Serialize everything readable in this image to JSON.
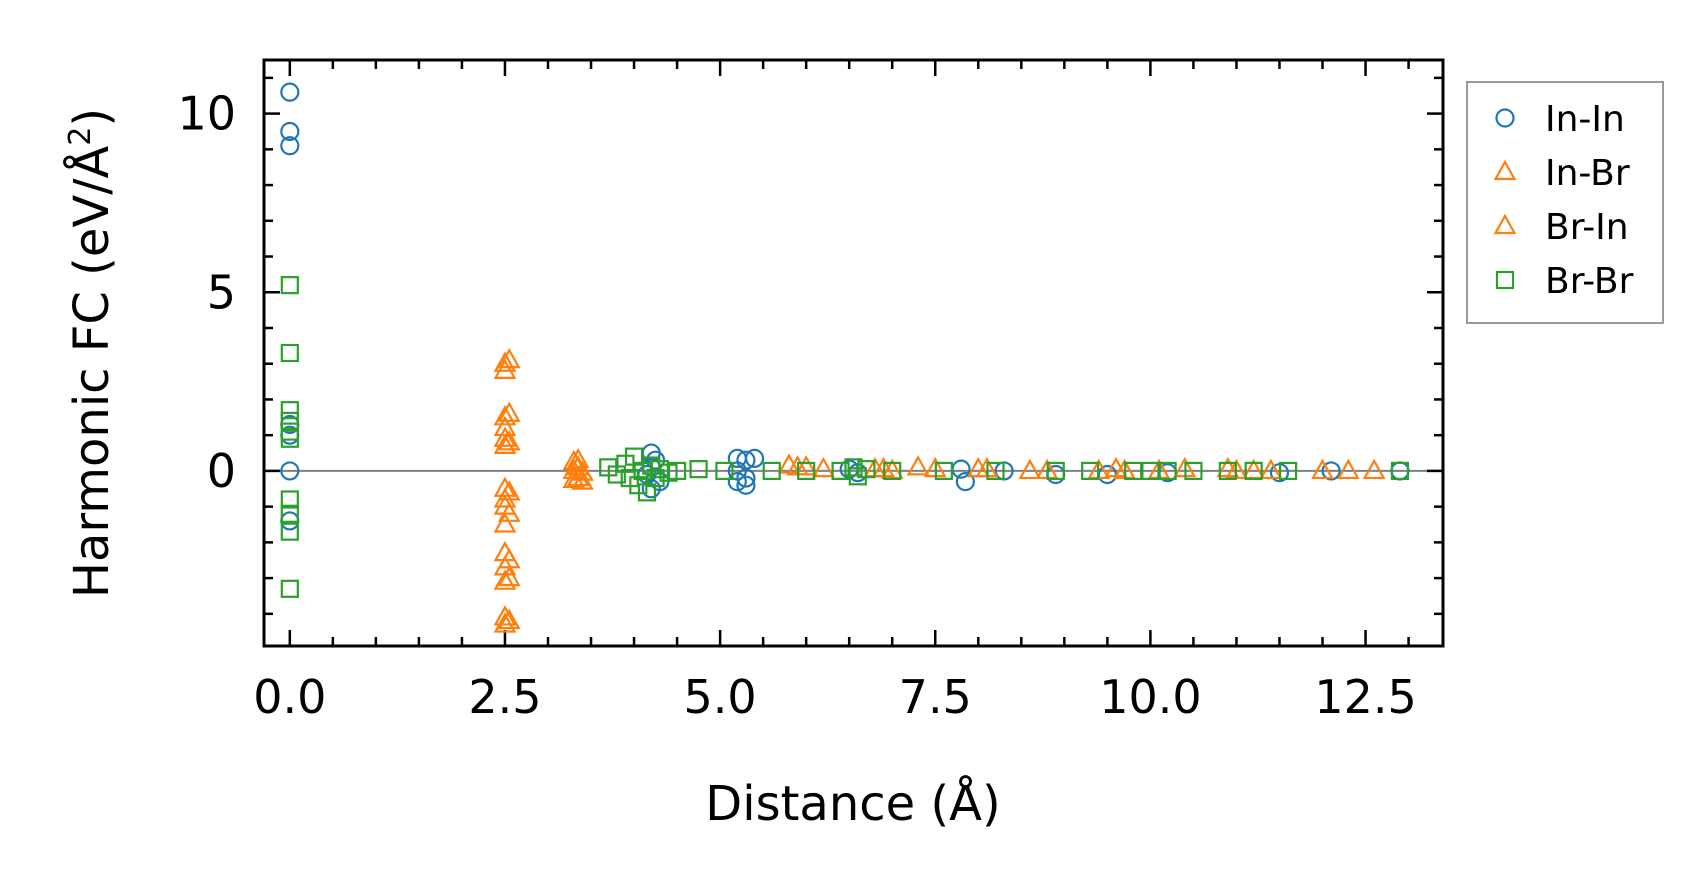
{
  "chart_data": {
    "type": "scatter",
    "title": "",
    "xlabel": "Distance (Å)",
    "ylabel_main": "Harmonic FC (eV/Å",
    "ylabel_sup": "2",
    "ylabel_close": ")",
    "xlim": [
      -0.3,
      13.4
    ],
    "ylim": [
      -4.9,
      11.5
    ],
    "xticks": [
      {
        "value": 0.0,
        "label": "0.0"
      },
      {
        "value": 2.5,
        "label": "2.5"
      },
      {
        "value": 5.0,
        "label": "5.0"
      },
      {
        "value": 7.5,
        "label": "7.5"
      },
      {
        "value": 10.0,
        "label": "10.0"
      },
      {
        "value": 12.5,
        "label": "12.5"
      }
    ],
    "yticks": [
      {
        "value": 0,
        "label": "0"
      },
      {
        "value": 5,
        "label": "5"
      },
      {
        "value": 10,
        "label": "10"
      }
    ],
    "x_minor_step": 0.5,
    "y_minor_step": 1,
    "zero_line": true,
    "legend_position": "outside-right-top",
    "series": [
      {
        "name": "In-In",
        "marker": "circle",
        "color": "#1f77b4",
        "points": [
          [
            0,
            10.6
          ],
          [
            0,
            9.5
          ],
          [
            0,
            9.1
          ],
          [
            0,
            1.3
          ],
          [
            0,
            1.0
          ],
          [
            0,
            0.0
          ],
          [
            0,
            -1.4
          ],
          [
            4.2,
            0.5
          ],
          [
            4.25,
            0.3
          ],
          [
            4.2,
            0.1
          ],
          [
            4.15,
            -0.1
          ],
          [
            4.3,
            -0.3
          ],
          [
            4.2,
            -0.5
          ],
          [
            5.2,
            0.35
          ],
          [
            5.3,
            0.3
          ],
          [
            5.4,
            0.35
          ],
          [
            5.2,
            0.0
          ],
          [
            5.3,
            -0.2
          ],
          [
            5.2,
            -0.3
          ],
          [
            5.3,
            -0.4
          ],
          [
            6.5,
            0.05
          ],
          [
            6.6,
            -0.05
          ],
          [
            7.8,
            0.05
          ],
          [
            7.85,
            -0.3
          ],
          [
            8.3,
            0.0
          ],
          [
            8.9,
            -0.1
          ],
          [
            9.5,
            -0.1
          ],
          [
            10.2,
            -0.05
          ],
          [
            11.5,
            -0.05
          ],
          [
            12.1,
            0.0
          ],
          [
            12.9,
            0.0
          ]
        ]
      },
      {
        "name": "In-Br",
        "marker": "triangle",
        "color": "#ff7f0e",
        "points": [
          [
            2.5,
            3.0
          ],
          [
            2.5,
            2.8
          ],
          [
            2.5,
            1.5
          ],
          [
            2.5,
            1.2
          ],
          [
            2.5,
            0.9
          ],
          [
            2.5,
            0.7
          ],
          [
            2.5,
            -0.5
          ],
          [
            2.5,
            -0.8
          ],
          [
            2.5,
            -1.0
          ],
          [
            2.5,
            -1.5
          ],
          [
            2.5,
            -2.3
          ],
          [
            2.5,
            -2.7
          ],
          [
            2.5,
            -3.1
          ],
          [
            2.5,
            -4.1
          ],
          [
            2.5,
            -4.3
          ],
          [
            3.35,
            0.3
          ],
          [
            3.35,
            0.1
          ],
          [
            3.4,
            -0.05
          ],
          [
            3.35,
            -0.2
          ],
          [
            3.4,
            -0.3
          ],
          [
            5.8,
            0.15
          ],
          [
            6.0,
            0.1
          ],
          [
            6.8,
            0.05
          ],
          [
            7.0,
            0.0
          ],
          [
            7.3,
            0.1
          ],
          [
            8.1,
            0.05
          ],
          [
            8.6,
            0.0
          ],
          [
            9.4,
            0.0
          ],
          [
            9.7,
            0.0
          ],
          [
            10.4,
            0.05
          ],
          [
            11.0,
            0.0
          ],
          [
            11.4,
            0.0
          ],
          [
            12.0,
            0.0
          ],
          [
            12.6,
            0.0
          ]
        ]
      },
      {
        "name": "Br-In",
        "marker": "triangle",
        "color": "#ff7f0e",
        "points": [
          [
            2.55,
            3.1
          ],
          [
            2.55,
            1.6
          ],
          [
            2.55,
            0.8
          ],
          [
            2.55,
            -0.6
          ],
          [
            2.55,
            -1.2
          ],
          [
            2.55,
            -2.5
          ],
          [
            2.55,
            -3.0
          ],
          [
            2.55,
            -4.2
          ],
          [
            3.3,
            0.25
          ],
          [
            3.3,
            0.0
          ],
          [
            3.3,
            -0.25
          ],
          [
            5.9,
            0.1
          ],
          [
            6.2,
            0.05
          ],
          [
            6.9,
            0.05
          ],
          [
            7.5,
            0.05
          ],
          [
            8.0,
            0.05
          ],
          [
            8.8,
            0.0
          ],
          [
            9.6,
            0.05
          ],
          [
            10.1,
            0.0
          ],
          [
            10.9,
            0.05
          ],
          [
            11.2,
            0.0
          ],
          [
            12.3,
            0.0
          ]
        ]
      },
      {
        "name": "Br-Br",
        "marker": "square",
        "color": "#2ca02c",
        "points": [
          [
            0,
            5.2
          ],
          [
            0,
            3.3
          ],
          [
            0,
            1.7
          ],
          [
            0,
            1.4
          ],
          [
            0,
            1.1
          ],
          [
            0,
            0.9
          ],
          [
            0,
            -0.8
          ],
          [
            0,
            -1.2
          ],
          [
            0,
            -1.7
          ],
          [
            0,
            -3.3
          ],
          [
            3.7,
            0.1
          ],
          [
            3.8,
            -0.1
          ],
          [
            3.9,
            0.2
          ],
          [
            3.95,
            -0.2
          ],
          [
            4.0,
            0.4
          ],
          [
            4.05,
            -0.4
          ],
          [
            4.1,
            0.0
          ],
          [
            4.15,
            -0.6
          ],
          [
            4.2,
            0.15
          ],
          [
            4.25,
            -0.2
          ],
          [
            4.3,
            0.05
          ],
          [
            4.4,
            -0.05
          ],
          [
            4.5,
            0.0
          ],
          [
            4.75,
            0.05
          ],
          [
            5.05,
            0.0
          ],
          [
            5.6,
            0.0
          ],
          [
            6.0,
            0.0
          ],
          [
            6.4,
            0.0
          ],
          [
            6.55,
            0.1
          ],
          [
            6.6,
            -0.15
          ],
          [
            6.7,
            0.05
          ],
          [
            7.0,
            0.0
          ],
          [
            7.6,
            0.0
          ],
          [
            8.2,
            0.0
          ],
          [
            8.9,
            0.0
          ],
          [
            9.3,
            0.0
          ],
          [
            9.8,
            0.0
          ],
          [
            10.0,
            0.0
          ],
          [
            10.2,
            0.0
          ],
          [
            10.5,
            0.0
          ],
          [
            10.9,
            0.0
          ],
          [
            11.2,
            0.0
          ],
          [
            11.6,
            0.0
          ],
          [
            12.9,
            0.0
          ]
        ]
      }
    ]
  }
}
